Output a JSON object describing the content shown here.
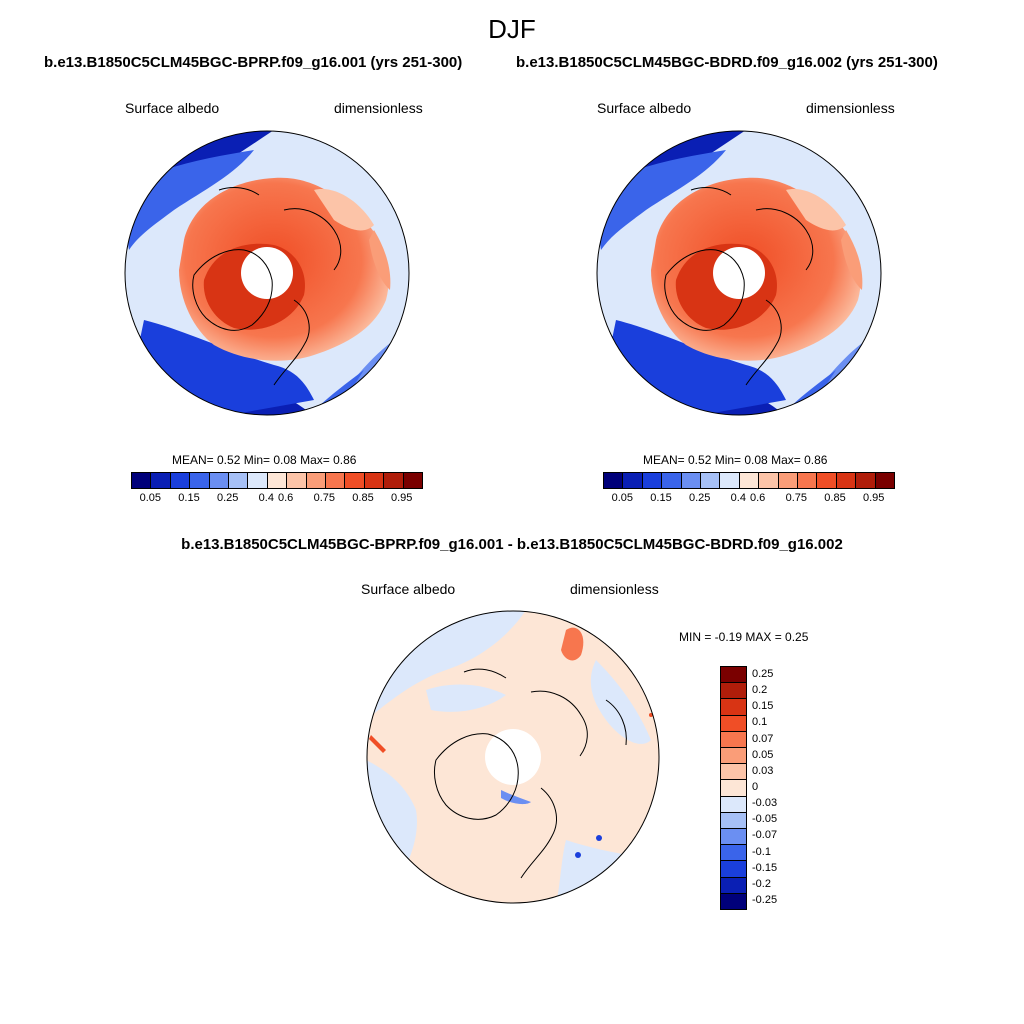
{
  "figure": {
    "season": "DJF",
    "case1_title": "b.e13.B1850C5CLM45BGC-BPRP.f09_g16.001 (yrs 251-300)",
    "case2_title": "b.e13.B1850C5CLM45BGC-BDRD.f09_g16.002 (yrs 251-300)",
    "diff_title": "b.e13.B1850C5CLM45BGC-BPRP.f09_g16.001 - b.e13.B1850C5CLM45BGC-BDRD.f09_g16.002"
  },
  "panels": {
    "p1": {
      "variable": "Surface albedo",
      "units": "dimensionless",
      "stats": "MEAN=   0.52  Min=   0.08  Max=   0.86"
    },
    "p2": {
      "variable": "Surface albedo",
      "units": "dimensionless",
      "stats": "MEAN=   0.52  Min=   0.08  Max=   0.86"
    },
    "diff": {
      "variable": "Surface albedo",
      "units": "dimensionless",
      "stats": "MIN =  -0.19 MAX =   0.25"
    }
  },
  "colorbar_main": {
    "ticks": [
      "0.05",
      "0.15",
      "0.25",
      "0.4",
      "0.6",
      "0.75",
      "0.85",
      "0.95"
    ],
    "colors": [
      "#00007a",
      "#0a1fb4",
      "#1a3fdc",
      "#3a64ea",
      "#6b8ff2",
      "#a6c0f6",
      "#dce8fb",
      "#fde6d6",
      "#fcc4a8",
      "#fa9d78",
      "#f7764e",
      "#f04e26",
      "#d83414",
      "#b01d0a",
      "#7a0000"
    ]
  },
  "colorbar_diff": {
    "labels": [
      "0.25",
      "0.2",
      "0.15",
      "0.1",
      "0.07",
      "0.05",
      "0.03",
      "0",
      "-0.03",
      "-0.05",
      "-0.07",
      "-0.1",
      "-0.15",
      "-0.2",
      "-0.25"
    ],
    "colors": [
      "#7a0000",
      "#b01d0a",
      "#d83414",
      "#f04e26",
      "#f7764e",
      "#fa9d78",
      "#fcc4a8",
      "#fde6d6",
      "#dce8fb",
      "#a6c0f6",
      "#6b8ff2",
      "#3a64ea",
      "#1a3fdc",
      "#0a1fb4",
      "#00007a"
    ]
  },
  "chart_data": [
    {
      "type": "heatmap",
      "title": "Surface albedo",
      "units": "dimensionless",
      "projection": "north polar stereographic",
      "mean": 0.52,
      "min": 0.08,
      "max": 0.86,
      "levels": [
        0.05,
        0.1,
        0.15,
        0.2,
        0.25,
        0.3,
        0.4,
        0.5,
        0.6,
        0.7,
        0.75,
        0.8,
        0.85,
        0.9,
        0.95
      ]
    },
    {
      "type": "heatmap",
      "title": "Surface albedo",
      "units": "dimensionless",
      "projection": "north polar stereographic",
      "mean": 0.52,
      "min": 0.08,
      "max": 0.86,
      "levels": [
        0.05,
        0.1,
        0.15,
        0.2,
        0.25,
        0.3,
        0.4,
        0.5,
        0.6,
        0.7,
        0.75,
        0.8,
        0.85,
        0.9,
        0.95
      ]
    },
    {
      "type": "heatmap",
      "title": "Surface albedo (difference)",
      "units": "dimensionless",
      "projection": "north polar stereographic",
      "min": -0.19,
      "max": 0.25,
      "levels": [
        -0.25,
        -0.2,
        -0.15,
        -0.1,
        -0.07,
        -0.05,
        -0.03,
        0,
        0.03,
        0.05,
        0.07,
        0.1,
        0.15,
        0.2,
        0.25
      ]
    }
  ]
}
